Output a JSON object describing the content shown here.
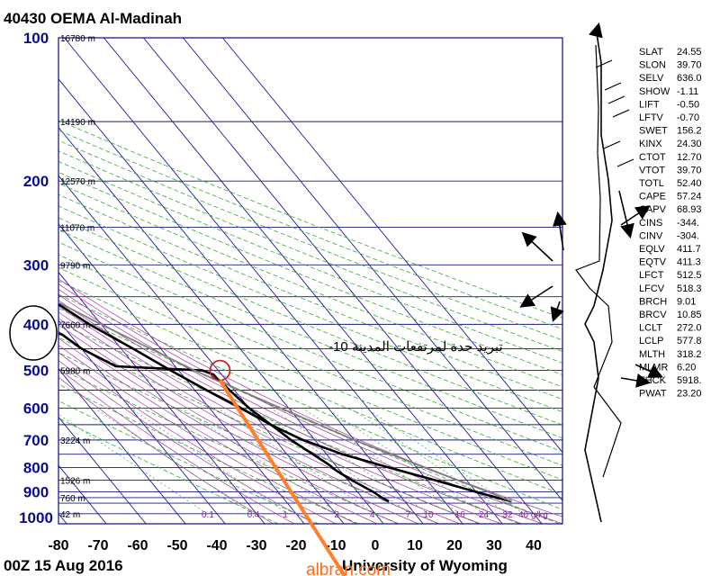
{
  "header": {
    "station_title": "40430 OEMA Al-Madinah"
  },
  "footer": {
    "date": "00Z 15 Aug 2016",
    "credit": "University of Wyoming",
    "watermark": "albran.com"
  },
  "annotation": {
    "text": "تبريد حدة لمرتفعات المدينة 10-",
    "color": "#ff7f2a",
    "highlight_level_hpa": 500,
    "highlight_temp_c": -10
  },
  "chart_data": {
    "type": "skew-t log-p sounding",
    "xlabel": "",
    "ylabel": "",
    "pressure_ticks": [
      100,
      200,
      300,
      400,
      500,
      600,
      700,
      800,
      900,
      1000
    ],
    "temperature_ticks": [
      -80,
      -70,
      -60,
      -50,
      -40,
      -30,
      -20,
      -10,
      0,
      10,
      20,
      30,
      40
    ],
    "height_labels": [
      {
        "p": 100,
        "label": "16780 m"
      },
      {
        "p": 150,
        "label": "14190 m"
      },
      {
        "p": 200,
        "label": "12570 m"
      },
      {
        "p": 250,
        "label": "11070 m"
      },
      {
        "p": 300,
        "label": "9790 m"
      },
      {
        "p": 400,
        "label": "7660 m"
      },
      {
        "p": 500,
        "label": "5980 m"
      },
      {
        "p": 700,
        "label": "3224 m"
      },
      {
        "p": 850,
        "label": "1526 m"
      },
      {
        "p": 925,
        "label": "760 m"
      },
      {
        "p": 1000,
        "label": "42 m"
      }
    ],
    "mixing_ratio_labels": [
      "0.1",
      "0.4",
      "1",
      "2",
      "4",
      "7",
      "10",
      "16",
      "24",
      "32",
      "40 g/kg"
    ],
    "mixing_ratio_positions_c": [
      -42.5,
      -31,
      -22,
      -9,
      0,
      9,
      13.5,
      21.5,
      27.5,
      33.5,
      37.5
    ],
    "series": [
      {
        "key": "temperature",
        "color": "#000000",
        "points": [
          [
            942,
            37
          ],
          [
            925,
            34
          ],
          [
            900,
            30
          ],
          [
            850,
            22
          ],
          [
            800,
            13
          ],
          [
            750,
            4
          ],
          [
            700,
            -3
          ],
          [
            650,
            -8
          ],
          [
            600,
            -12
          ],
          [
            550,
            -17
          ],
          [
            500,
            -22
          ],
          [
            450,
            -27
          ],
          [
            400,
            -33
          ],
          [
            350,
            -38
          ],
          [
            300,
            -44
          ],
          [
            250,
            -50
          ],
          [
            200,
            -56
          ],
          [
            150,
            -64
          ],
          [
            100,
            -74
          ]
        ]
      },
      {
        "key": "dewpoint",
        "color": "#000000",
        "points": [
          [
            942,
            6
          ],
          [
            925,
            5
          ],
          [
            900,
            4
          ],
          [
            850,
            1
          ],
          [
            810,
            -1
          ],
          [
            790,
            -1.5
          ],
          [
            700,
            -6
          ],
          [
            600,
            -10
          ],
          [
            520,
            -12
          ],
          [
            510,
            -12
          ],
          [
            500,
            -14
          ],
          [
            490,
            -35
          ],
          [
            450,
            -40
          ],
          [
            420,
            -42
          ],
          [
            415,
            -44
          ],
          [
            410,
            -43
          ],
          [
            405,
            -45
          ],
          [
            400,
            -48
          ],
          [
            390,
            -58
          ],
          [
            350,
            -66
          ],
          [
            330,
            -68
          ],
          [
            300,
            -68
          ],
          [
            280,
            -68
          ],
          [
            270,
            -68
          ],
          [
            250,
            -68
          ],
          [
            220,
            -70
          ],
          [
            200,
            -75
          ],
          [
            180,
            -72
          ],
          [
            170,
            -63
          ],
          [
            160,
            -62
          ],
          [
            150,
            -65
          ],
          [
            130,
            -68
          ],
          [
            115,
            -70
          ],
          [
            100,
            -74
          ]
        ]
      },
      {
        "key": "parcel",
        "color": "#808080",
        "points": [
          [
            942,
            37
          ],
          [
            900,
            33
          ],
          [
            800,
            22
          ],
          [
            700,
            10
          ],
          [
            600,
            -2
          ],
          [
            500,
            -16
          ],
          [
            400,
            -30
          ],
          [
            300,
            -47
          ],
          [
            200,
            -63
          ],
          [
            150,
            -64
          ],
          [
            120,
            -70
          ]
        ]
      }
    ],
    "station_indices": [
      {
        "key": "SLAT",
        "value": "24.55"
      },
      {
        "key": "SLON",
        "value": "39.70"
      },
      {
        "key": "SELV",
        "value": "636.0"
      },
      {
        "key": "SHOW",
        "value": "-1.11"
      },
      {
        "key": "LIFT",
        "value": "-0.50"
      },
      {
        "key": "LFTV",
        "value": "-0.70"
      },
      {
        "key": "SWET",
        "value": "156.2"
      },
      {
        "key": "KINX",
        "value": "24.30"
      },
      {
        "key": "CTOT",
        "value": "12.70"
      },
      {
        "key": "VTOT",
        "value": "39.70"
      },
      {
        "key": "TOTL",
        "value": "52.40"
      },
      {
        "key": "CAPE",
        "value": "57.24"
      },
      {
        "key": "CAPV",
        "value": "68.93"
      },
      {
        "key": "CINS",
        "value": "-344."
      },
      {
        "key": "CINV",
        "value": "-304."
      },
      {
        "key": "EQLV",
        "value": "411.7"
      },
      {
        "key": "EQTV",
        "value": "411.3"
      },
      {
        "key": "LFCT",
        "value": "512.5"
      },
      {
        "key": "LFCV",
        "value": "518.3"
      },
      {
        "key": "BRCH",
        "value": "9.01"
      },
      {
        "key": "BRCV",
        "value": "10.85"
      },
      {
        "key": "LCLT",
        "value": "272.0"
      },
      {
        "key": "LCLP",
        "value": "577.8"
      },
      {
        "key": "MLTH",
        "value": "318.2"
      },
      {
        "key": "MLMR",
        "value": "6.20"
      },
      {
        "key": "THCK",
        "value": "5918."
      },
      {
        "key": "PWAT",
        "value": "23.20"
      }
    ]
  },
  "colors": {
    "isobar": "#1a1a7a",
    "isotherm": "#1a1a9a",
    "dry_adiabat": "#33aa33",
    "moist_adiabat": "#aa33aa",
    "mixing_ratio": "#33aa33",
    "arrow": "#000000"
  }
}
